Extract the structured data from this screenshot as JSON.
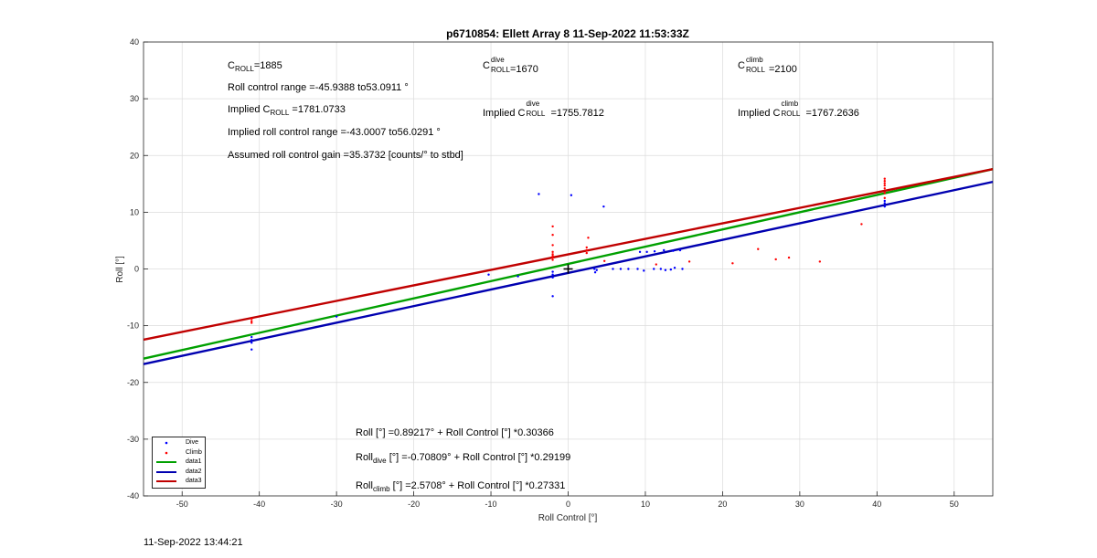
{
  "chart_data": {
    "type": "scatter",
    "title": "p6710854: Ellett Array 8 11-Sep-2022 11:53:33Z",
    "xlabel": "Roll Control [°]",
    "ylabel": "Roll [°]",
    "xlim": [
      -55,
      55
    ],
    "ylim": [
      -40,
      40
    ],
    "xticks": [
      -50,
      -40,
      -30,
      -20,
      -10,
      0,
      10,
      20,
      30,
      40,
      50
    ],
    "yticks": [
      -40,
      -30,
      -20,
      -10,
      0,
      10,
      20,
      30,
      40
    ],
    "grid": true,
    "legend_position": "bottom-left",
    "series": [
      {
        "name": "Dive",
        "kind": "points",
        "color": "#0000ff",
        "points": [
          [
            -41,
            -12
          ],
          [
            -41,
            -12.5
          ],
          [
            -41,
            -13
          ],
          [
            -41,
            -14.2
          ],
          [
            -30,
            -8.4
          ],
          [
            -10.3,
            -1
          ],
          [
            -6.5,
            -1.3
          ],
          [
            -3.8,
            13.2
          ],
          [
            -2,
            -1
          ],
          [
            -2,
            -1.5
          ],
          [
            -2,
            -0.5
          ],
          [
            -2,
            -4.8
          ],
          [
            0.4,
            13
          ],
          [
            3.4,
            0
          ],
          [
            3.5,
            -0.6
          ],
          [
            3.7,
            -0.2
          ],
          [
            4.6,
            11
          ],
          [
            5.8,
            0
          ],
          [
            6.8,
            0
          ],
          [
            7.8,
            0
          ],
          [
            9,
            0
          ],
          [
            9.8,
            -0.3
          ],
          [
            11.1,
            0
          ],
          [
            12,
            0
          ],
          [
            12.6,
            -0.2
          ],
          [
            13.3,
            -0.1
          ],
          [
            13.8,
            0.2
          ],
          [
            14.8,
            0
          ],
          [
            9.3,
            3
          ],
          [
            10.2,
            3
          ],
          [
            11.2,
            3.1
          ],
          [
            12.4,
            3.3
          ],
          [
            13.6,
            3.2
          ],
          [
            14.5,
            3.3
          ],
          [
            41,
            11
          ],
          [
            41,
            11.6
          ],
          [
            41,
            12
          ]
        ]
      },
      {
        "name": "Climb",
        "kind": "points",
        "color": "#ff0000",
        "points": [
          [
            -41,
            -8.8
          ],
          [
            -41,
            -9.2
          ],
          [
            -41,
            -9.5
          ],
          [
            -2,
            1.6
          ],
          [
            -2,
            2
          ],
          [
            -2,
            2.3
          ],
          [
            -2,
            2.6
          ],
          [
            -2,
            3
          ],
          [
            -2,
            4.2
          ],
          [
            -2,
            6
          ],
          [
            -2,
            7.5
          ],
          [
            2.4,
            2.8
          ],
          [
            2.4,
            3.3
          ],
          [
            2.4,
            3.8
          ],
          [
            2.6,
            5.5
          ],
          [
            4.7,
            1.4
          ],
          [
            11.4,
            0.8
          ],
          [
            15.7,
            1.3
          ],
          [
            21.3,
            1
          ],
          [
            24.6,
            3.5
          ],
          [
            26.9,
            1.7
          ],
          [
            28.6,
            2
          ],
          [
            32.6,
            1.3
          ],
          [
            38,
            7.9
          ],
          [
            41,
            13.4
          ],
          [
            41,
            14.2
          ],
          [
            41,
            14.7
          ],
          [
            41,
            15.1
          ],
          [
            41,
            15.5
          ],
          [
            41,
            15.9
          ],
          [
            41,
            12.5
          ]
        ]
      },
      {
        "name": "data1",
        "kind": "line",
        "color": "#00a000",
        "intercept": 0.89217,
        "slope": 0.30366
      },
      {
        "name": "data2",
        "kind": "line",
        "color": "#0000b0",
        "intercept": -0.70809,
        "slope": 0.29199
      },
      {
        "name": "data3",
        "kind": "line",
        "color": "#c00000",
        "intercept": 2.5708,
        "slope": 0.27331
      }
    ],
    "marker": {
      "x": 0,
      "y": 0,
      "symbol": "+"
    }
  },
  "annotations": {
    "c_roll_base": "C",
    "c_roll_sub": "ROLL",
    "c_roll_value": "=1885",
    "c_roll_dive_sup": "dive",
    "c_roll_dive_value": "=1670",
    "c_roll_climb_sup": "climb",
    "c_roll_climb_value": "=2100",
    "range_text": "Roll control range =-45.9388 to53.0911 °",
    "implied_prefix": "Implied C",
    "implied_sub": "ROLL",
    "implied_value": " =1781.0733",
    "implied_dive_value": "=1755.7812",
    "implied_climb_value": "=1767.2636",
    "implied_range_text": "Implied roll control range =-43.0007 to56.0291 °",
    "gain_text": "Assumed roll control gain =35.3732 [counts/° to stbd]",
    "fit_all": "Roll [°] =0.89217° + Roll Control [°] *0.30366",
    "fit_dive_base": "Roll",
    "fit_dive_sub": "dive",
    "fit_dive_rest": " [°] =-0.70809° + Roll Control [°] *0.29199",
    "fit_climb_base": "Roll",
    "fit_climb_sub": "climb",
    "fit_climb_rest": " [°] =2.5708° + Roll Control [°] *0.27331"
  },
  "legend": {
    "items": [
      {
        "label": "Dive",
        "color": "#0000ff",
        "kind": "dot"
      },
      {
        "label": "Climb",
        "color": "#ff0000",
        "kind": "dot"
      },
      {
        "label": "data1",
        "color": "#00a000",
        "kind": "line"
      },
      {
        "label": "data2",
        "color": "#0000b0",
        "kind": "line"
      },
      {
        "label": "data3",
        "color": "#c00000",
        "kind": "line"
      }
    ]
  },
  "footer": {
    "timestamp": "11-Sep-2022 13:44:21"
  }
}
